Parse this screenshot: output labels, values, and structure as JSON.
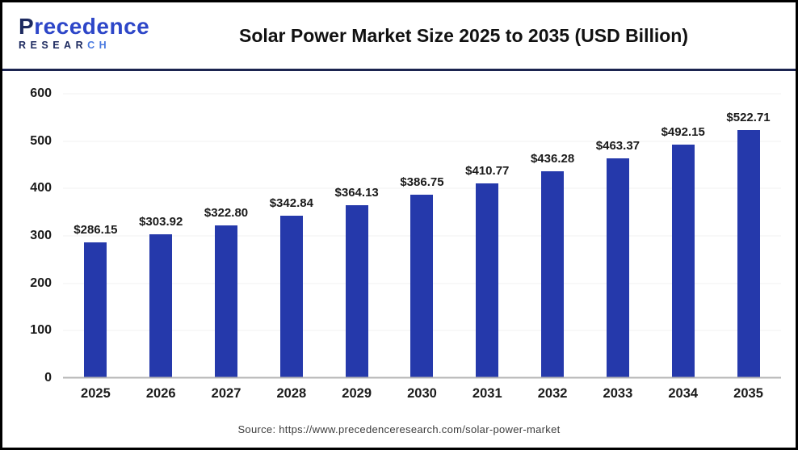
{
  "header": {
    "logo": {
      "name": "Precedence",
      "research_main": "RESEAR",
      "research_accent": "CH"
    },
    "title": "Solar Power Market Size 2025 to 2035 (USD Billion)"
  },
  "chart_data": {
    "type": "bar",
    "title": "Solar Power Market Size 2025 to 2035 (USD Billion)",
    "categories": [
      "2025",
      "2026",
      "2027",
      "2028",
      "2029",
      "2030",
      "2031",
      "2032",
      "2033",
      "2034",
      "2035"
    ],
    "values": [
      286.15,
      303.92,
      322.8,
      342.84,
      364.13,
      386.75,
      410.77,
      436.28,
      463.37,
      492.15,
      522.71
    ],
    "value_prefix": "$",
    "value_decimals": 2,
    "xlabel": "",
    "ylabel": "",
    "ylim": [
      0,
      600
    ],
    "ytick_step": 100,
    "grid": true,
    "legend": false,
    "bar_color": "#2539ab"
  },
  "footer": {
    "source": "Source: https://www.precedenceresearch.com/solar-power-market"
  },
  "colors": {
    "bar": "#2539ab",
    "header_separator": "#1b2450",
    "gridline": "#f0f0f0",
    "baseline": "#b5b5b5",
    "logo_navy": "#1d2a60",
    "logo_blue": "#2d46c8",
    "logo_accent": "#4a7ae0"
  }
}
